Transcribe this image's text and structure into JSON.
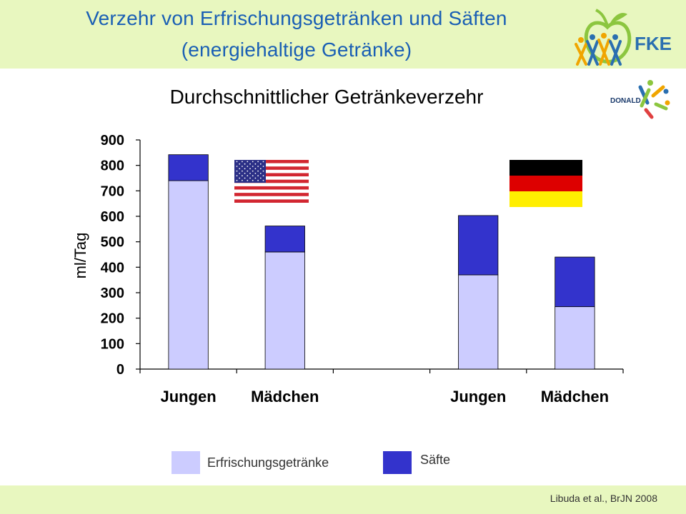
{
  "header": {
    "title_line1": "Verzehr von Erfrischungsgetränken und Säften",
    "title_line2": "(energiehaltige Getränke)",
    "logo_text": "FKE",
    "logo_color": "#2a6fb0"
  },
  "donald_logo_text": "DONALD",
  "colors": {
    "header_bg": "#e8f7bf",
    "title": "#1a5fb4",
    "refreshment": "#ccccff",
    "juice": "#3333cc"
  },
  "chart_data": {
    "type": "bar",
    "stacked": true,
    "title": "Durchschnittlicher Getränkeverzehr",
    "ylabel": "ml/Tag",
    "xlabel": "",
    "ylim": [
      0,
      900
    ],
    "yticks": [
      0,
      100,
      200,
      300,
      400,
      500,
      600,
      700,
      800,
      900
    ],
    "groups": [
      "USA",
      "Deutschland"
    ],
    "categories": [
      "Jungen",
      "Mädchen",
      "",
      "Jungen",
      "Mädchen"
    ],
    "series": [
      {
        "name": "Erfrischungsgetränke",
        "values": [
          740,
          460,
          null,
          370,
          245
        ]
      },
      {
        "name": "Säfte",
        "values": [
          102,
          102,
          null,
          233,
          195
        ]
      }
    ],
    "legend_position": "bottom"
  },
  "citation": "Libuda et al., BrJN 2008"
}
